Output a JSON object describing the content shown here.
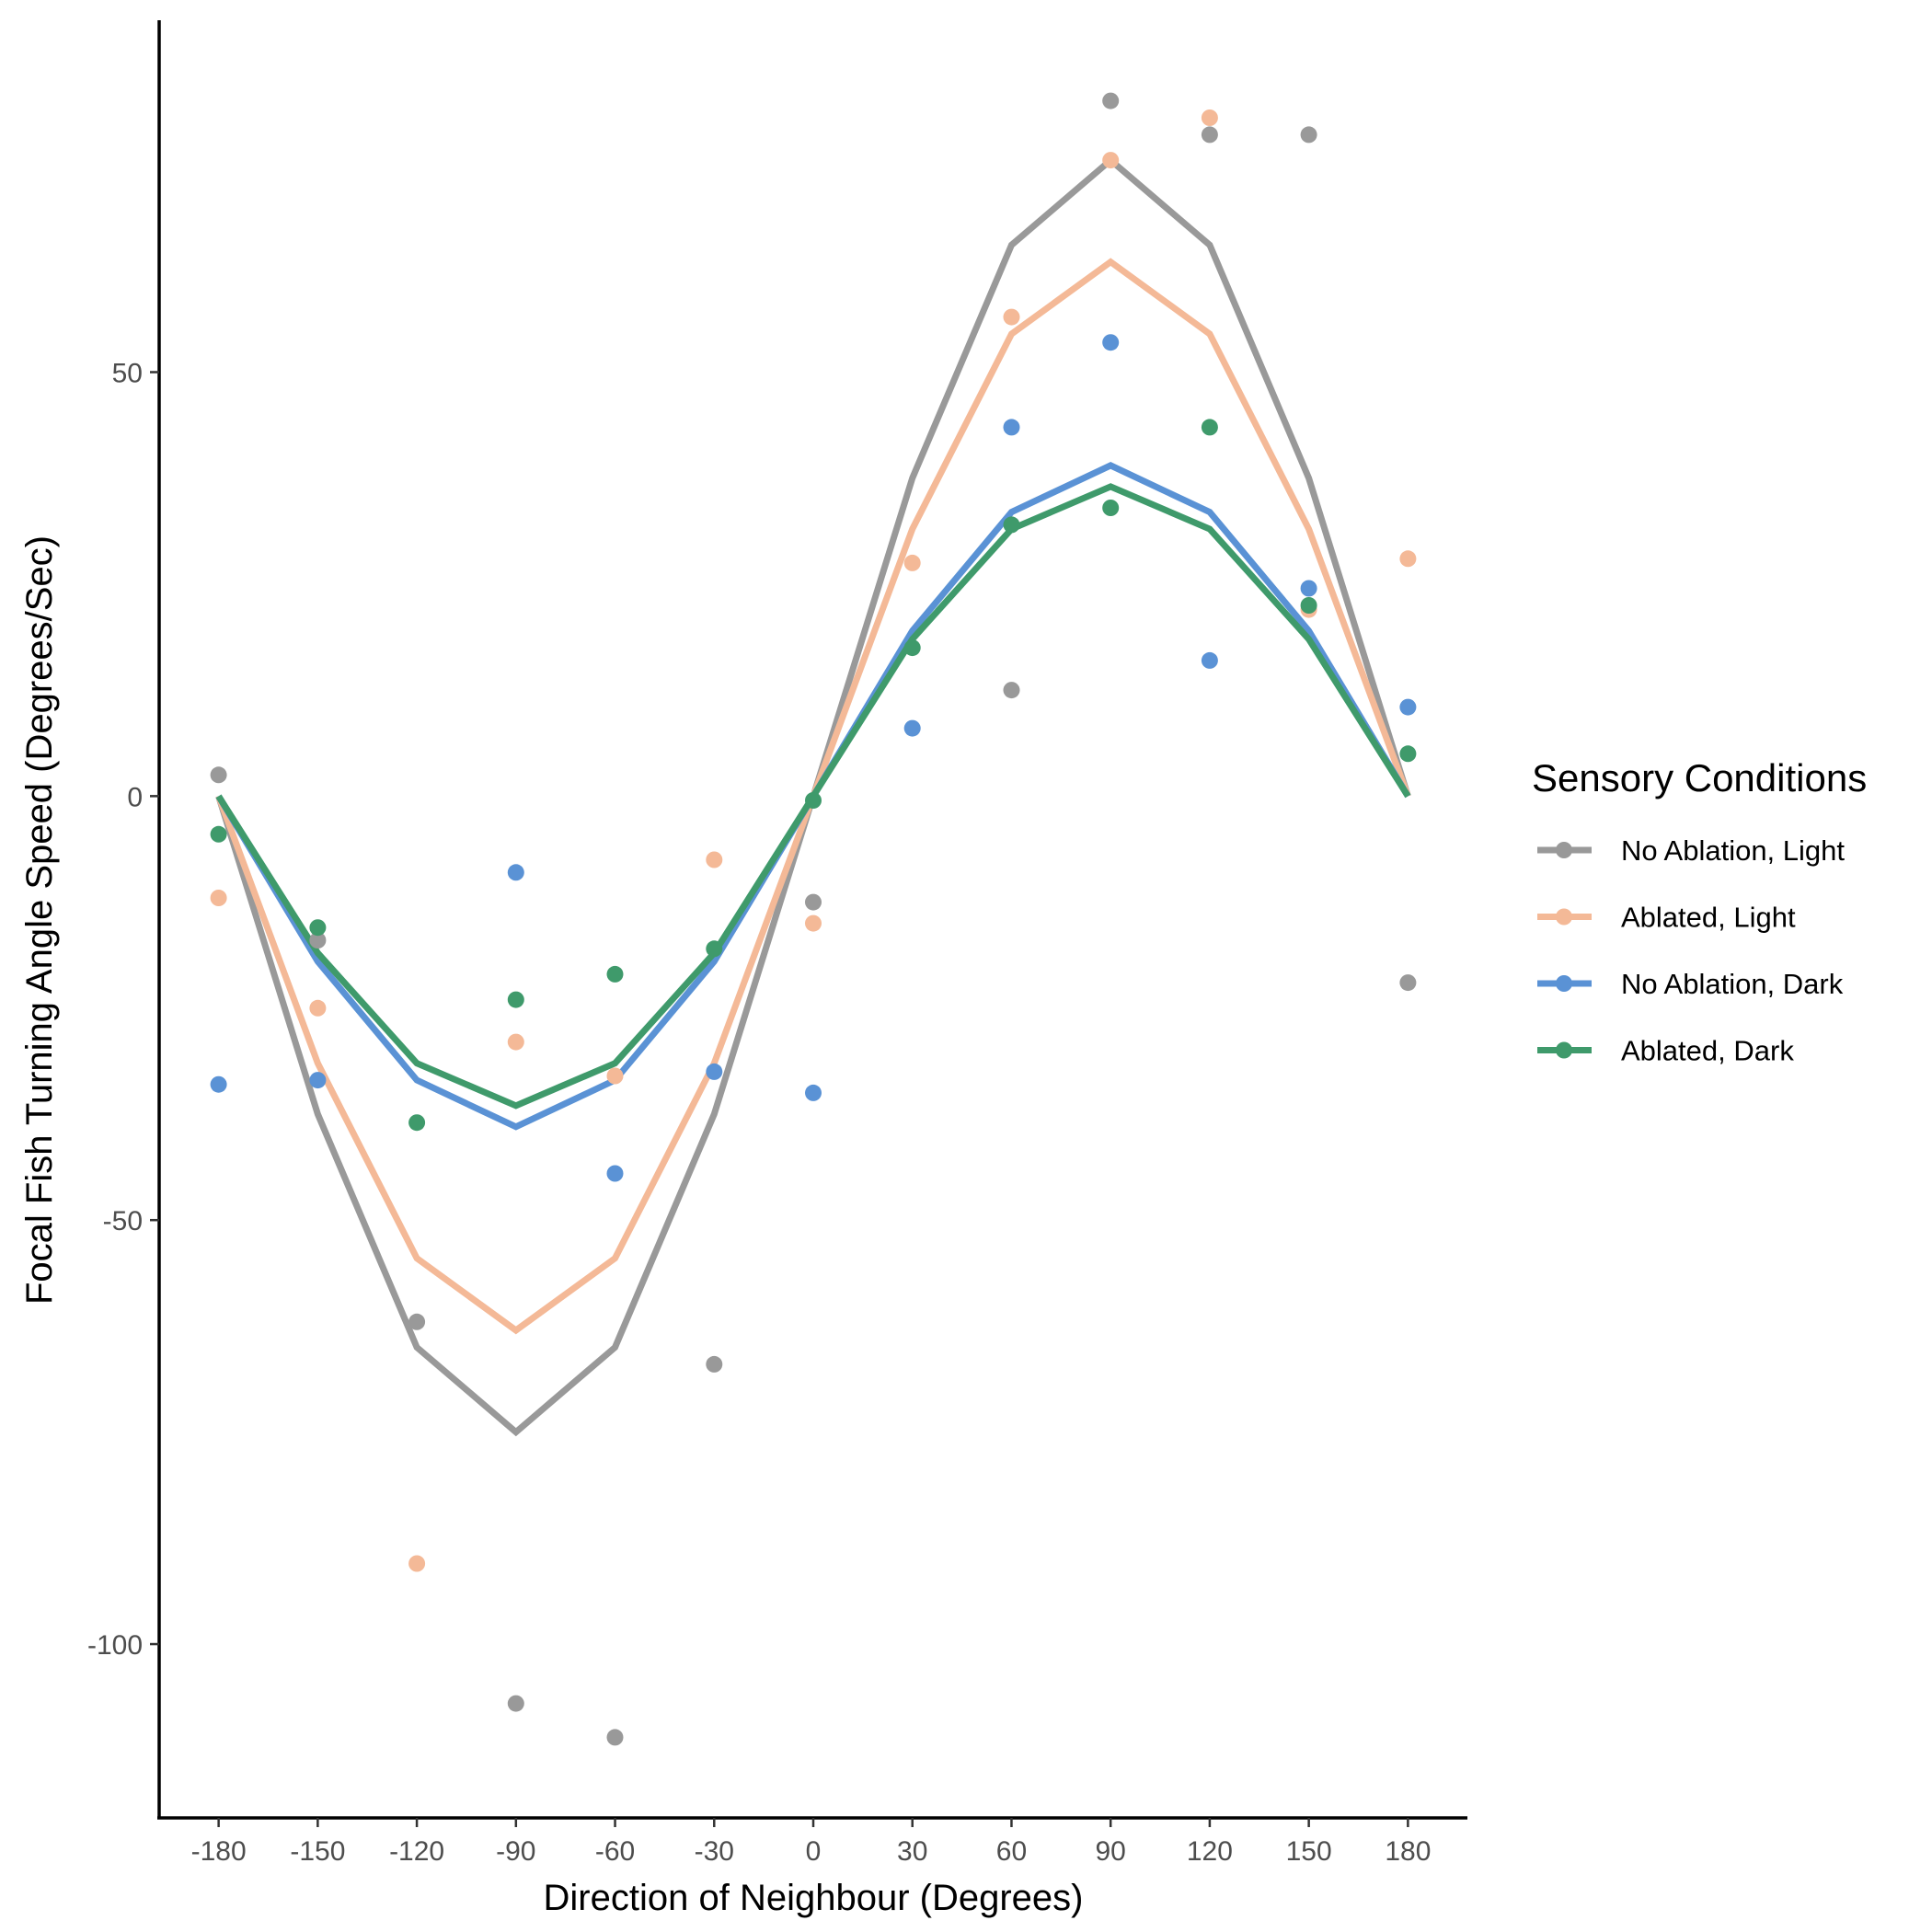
{
  "chart_data": {
    "type": "line",
    "title": "",
    "xlabel": "Direction of Neighbour (Degrees)",
    "ylabel": "Focal Fish Turning Angle Speed (Degrees/Sec)",
    "x": [
      -180,
      -150,
      -120,
      -90,
      -60,
      -30,
      0,
      30,
      60,
      90,
      120,
      150,
      180
    ],
    "x_ticks": [
      -180,
      -150,
      -120,
      -90,
      -60,
      -30,
      0,
      30,
      60,
      90,
      120,
      150,
      180
    ],
    "y_ticks": [
      -100,
      -50,
      0,
      50
    ],
    "xlim": [
      -198,
      198
    ],
    "ylim": [
      -120.5,
      91.5
    ],
    "grid": false,
    "legend": {
      "title": "Sensory Conditions",
      "position": "right"
    },
    "series": [
      {
        "name": "No Ablation, Light",
        "color": "#999999",
        "line": [
          0,
          -37.5,
          -65,
          -75,
          -65,
          -37.5,
          0,
          37.5,
          65,
          75,
          65,
          37.5,
          0
        ],
        "points": [
          2.5,
          -17,
          -62,
          -107,
          -111,
          -67,
          -12.5,
          null,
          12.5,
          82,
          78,
          78,
          -22
        ]
      },
      {
        "name": "Ablated, Light",
        "color": "#F4B997",
        "line": [
          0,
          -31.5,
          -54.5,
          -63,
          -54.5,
          -31.5,
          0,
          31.5,
          54.5,
          63,
          54.5,
          31.5,
          0
        ],
        "points": [
          -12,
          -25,
          -90.5,
          -29,
          -33,
          -7.5,
          -15,
          27.5,
          56.5,
          75,
          80,
          22,
          28
        ]
      },
      {
        "name": "No Ablation, Dark",
        "color": "#5A92D5",
        "line": [
          0,
          -19.5,
          -33.5,
          -39,
          -33.5,
          -19.5,
          0,
          19.5,
          33.5,
          39,
          33.5,
          19.5,
          0
        ],
        "points": [
          -34,
          -33.5,
          null,
          -9,
          -44.5,
          -32.5,
          -35,
          8,
          43.5,
          53.5,
          16,
          24.5,
          10.5
        ]
      },
      {
        "name": "Ablated, Dark",
        "color": "#3F9A6B",
        "line": [
          0,
          -18.5,
          -31.5,
          -36.5,
          -31.5,
          -18.5,
          0,
          18.5,
          31.5,
          36.5,
          31.5,
          18.5,
          0
        ],
        "points": [
          -4.5,
          -15.5,
          -38.5,
          -24,
          -21,
          -18,
          -0.5,
          17.5,
          32,
          34,
          43.5,
          22.5,
          5
        ]
      }
    ]
  }
}
